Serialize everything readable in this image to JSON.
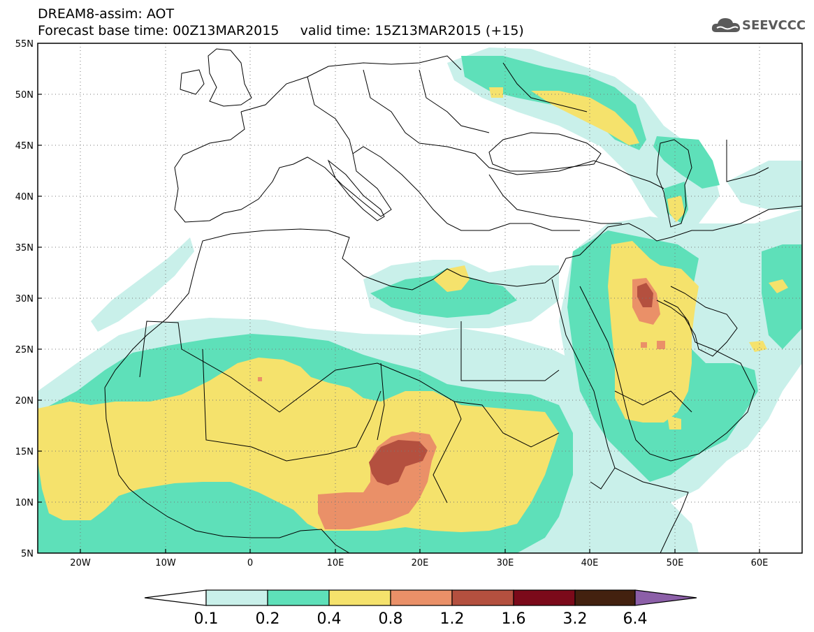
{
  "header": {
    "title_line1": "DREAM8-assim: AOT",
    "title_line2": "Forecast base time: 00Z13MAR2015     valid time: 15Z13MAR2015 (+15)"
  },
  "logo": {
    "text": "SEEVCCC",
    "icon": "cloud-icon"
  },
  "map": {
    "lon_ticks": [
      "20W",
      "10W",
      "0",
      "10E",
      "20E",
      "30E",
      "40E",
      "50E",
      "60E"
    ],
    "lat_ticks": [
      "55N",
      "50N",
      "45N",
      "40N",
      "35N",
      "30N",
      "25N",
      "20N",
      "15N",
      "10N",
      "5N"
    ],
    "extent": {
      "lon_min": -25,
      "lon_max": 65,
      "lat_min": 5,
      "lat_max": 55
    },
    "gridlines": "dotted"
  },
  "colorbar": {
    "labels": [
      "0.1",
      "0.2",
      "0.4",
      "0.8",
      "1.2",
      "1.6",
      "3.2",
      "6.4"
    ],
    "colors": [
      "#ffffff",
      "#c9f0ea",
      "#5ee0b9",
      "#f5e26c",
      "#ea9068",
      "#b4503f",
      "#7b0a1a",
      "#43210f",
      "#8c5fa8"
    ]
  },
  "legend_colors": {
    "c1": "#c9f0ea",
    "c2": "#5ee0b9",
    "c3": "#f5e26c",
    "c4": "#ea9068",
    "c5": "#b4503f",
    "c6": "#7b0a1a"
  }
}
